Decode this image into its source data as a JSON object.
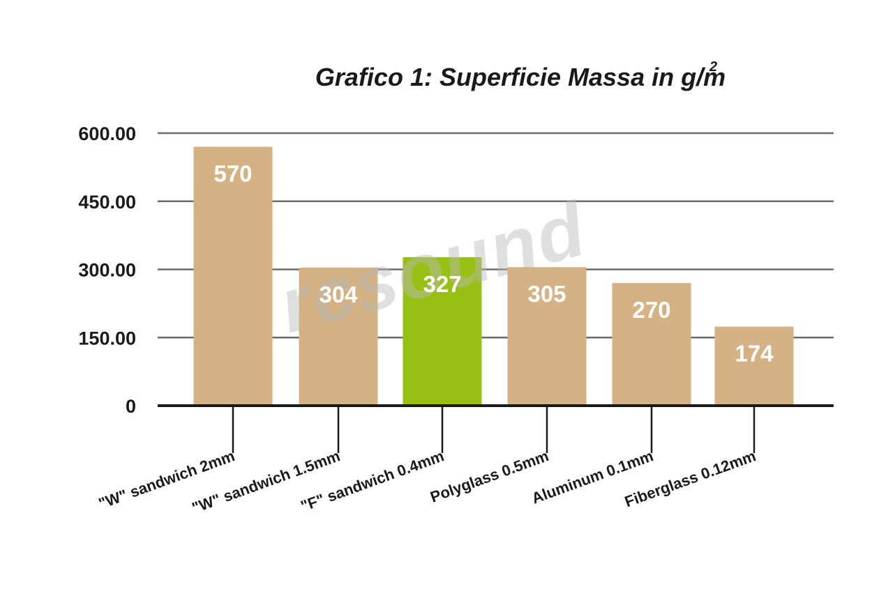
{
  "chart_data": {
    "type": "bar",
    "title": "Grafico 1: Superficie Massa in g/m",
    "title_superscript": "2",
    "xlabel": "",
    "ylabel": "",
    "ylim": [
      0,
      600
    ],
    "y_ticks": [
      {
        "value": 0,
        "label": "0"
      },
      {
        "value": 150,
        "label": "150.00"
      },
      {
        "value": 300,
        "label": "300.00"
      },
      {
        "value": 450,
        "label": "450.00"
      },
      {
        "value": 600,
        "label": "600.00"
      }
    ],
    "grid": true,
    "categories": [
      "\"W\" sandwich 2mm",
      "\"W\" sandwich 1.5mm",
      "\"F\" sandwich 0.4mm",
      "Polyglass 0.5mm",
      "Aluminum 0.1mm",
      "Fiberglass 0.12mm"
    ],
    "values": [
      570,
      304,
      327,
      305,
      270,
      174
    ],
    "data_labels": [
      "570",
      "304",
      "327",
      "305",
      "270",
      "174"
    ],
    "bar_colors": [
      "#d4b283",
      "#d4b283",
      "#97bf14",
      "#d4b283",
      "#d4b283",
      "#d4b283"
    ],
    "legend": "none"
  },
  "colors": {
    "bar": "#d4b283",
    "highlight_bar": "#97bf14",
    "gridline": "#6b6b6b",
    "axis": "#1a1a1a",
    "text": "#1a1a1a",
    "data_label": "#ffffff"
  },
  "watermark": {
    "text": "rcsound"
  }
}
